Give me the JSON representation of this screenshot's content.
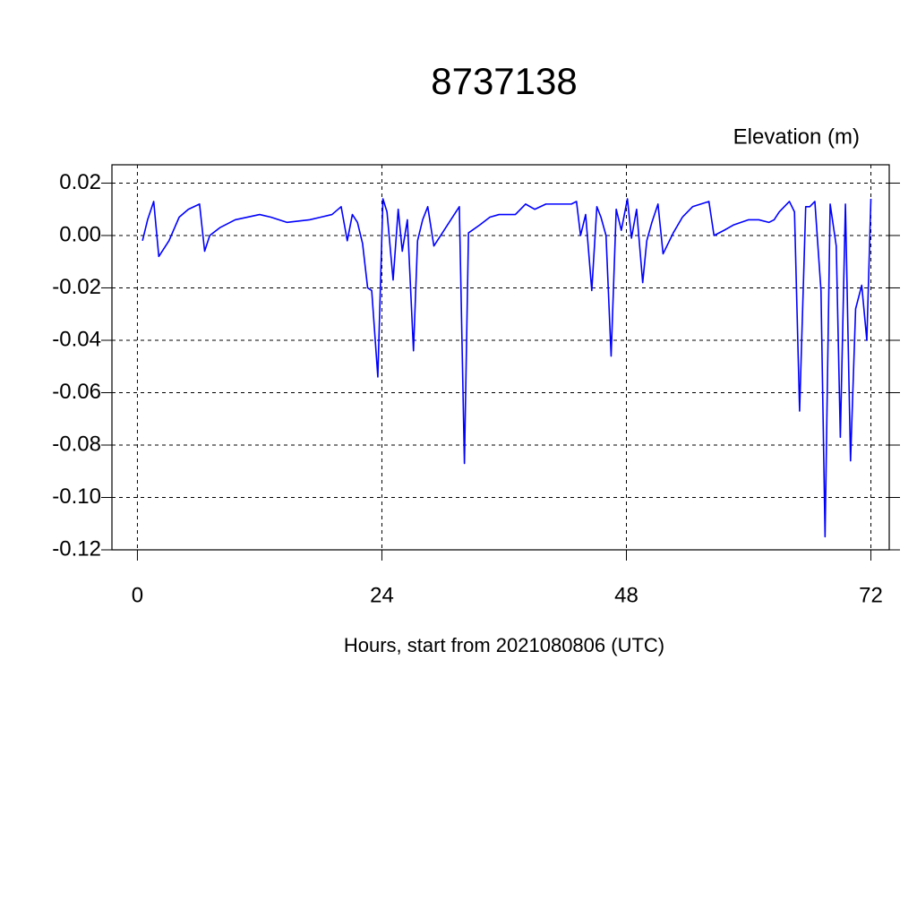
{
  "chart_data": {
    "type": "line",
    "title": "8737138",
    "subtitle": "Elevation (m)",
    "x_label": "Hours, start from 2021080806 (UTC)",
    "xlim": [
      -2.5,
      73.8
    ],
    "ylim": [
      -0.12,
      0.027
    ],
    "xticks": [
      0,
      24,
      48,
      72
    ],
    "yticks": [
      0.02,
      {
        "value": 0,
        "label": "0.00"
      },
      -0.02,
      -0.04,
      -0.06,
      -0.08,
      {
        "value": -0.1,
        "label": "-0.10"
      },
      -0.12
    ],
    "grid": true,
    "x": [
      0.5,
      1.0,
      1.6,
      2.1,
      3.1,
      4.1,
      5.0,
      6.1,
      6.6,
      7.1,
      8.1,
      9.6,
      12.0,
      13.1,
      14.7,
      16.9,
      18.0,
      19.1,
      20.0,
      20.6,
      21.1,
      21.6,
      22.1,
      22.6,
      23.0,
      23.6,
      24.1,
      24.5,
      25.1,
      25.6,
      26.0,
      26.5,
      27.1,
      27.5,
      28.0,
      28.5,
      29.1,
      30.1,
      31.1,
      31.6,
      32.1,
      32.5,
      33.6,
      34.6,
      35.5,
      36.1,
      37.1,
      38.1,
      39.0,
      40.1,
      41.1,
      42.6,
      43.1,
      43.5,
      44.0,
      44.6,
      45.1,
      45.5,
      46.0,
      46.5,
      47.0,
      47.5,
      48.1,
      48.5,
      49.0,
      49.6,
      50.0,
      50.5,
      51.1,
      51.6,
      52.6,
      53.5,
      54.5,
      56.1,
      56.6,
      57.6,
      58.5,
      60.0,
      61.0,
      62.0,
      62.5,
      63.0,
      64.0,
      64.5,
      65.0,
      65.6,
      66.0,
      66.5,
      67.1,
      67.5,
      68.0,
      68.6,
      69.0,
      69.5,
      70.0,
      70.5,
      71.1,
      71.6,
      72.0
    ],
    "series": [
      {
        "color": "#0000ff",
        "values": [
          -0.002,
          0.006,
          0.013,
          -0.008,
          -0.002,
          0.007,
          0.01,
          0.012,
          -0.006,
          0.0,
          0.003,
          0.006,
          0.008,
          0.007,
          0.005,
          0.006,
          0.007,
          0.008,
          0.011,
          -0.002,
          0.008,
          0.005,
          -0.003,
          -0.02,
          -0.021,
          -0.054,
          0.014,
          0.009,
          -0.017,
          0.01,
          -0.006,
          0.006,
          -0.044,
          -0.002,
          0.006,
          0.011,
          -0.004,
          0.002,
          0.008,
          0.011,
          -0.087,
          0.001,
          0.004,
          0.007,
          0.008,
          0.008,
          0.008,
          0.012,
          0.01,
          0.012,
          0.012,
          0.012,
          0.013,
          0.0,
          0.008,
          -0.021,
          0.011,
          0.007,
          0.0,
          -0.046,
          0.01,
          0.002,
          0.014,
          -0.001,
          0.01,
          -0.018,
          -0.002,
          0.005,
          0.012,
          -0.007,
          0.001,
          0.007,
          0.011,
          0.013,
          0.0,
          0.002,
          0.004,
          0.006,
          0.006,
          0.005,
          0.006,
          0.009,
          0.013,
          0.009,
          -0.067,
          0.011,
          0.011,
          0.013,
          -0.021,
          -0.115,
          0.012,
          -0.004,
          -0.077,
          0.012,
          -0.086,
          -0.028,
          -0.019,
          -0.04,
          0.014
        ]
      }
    ]
  }
}
